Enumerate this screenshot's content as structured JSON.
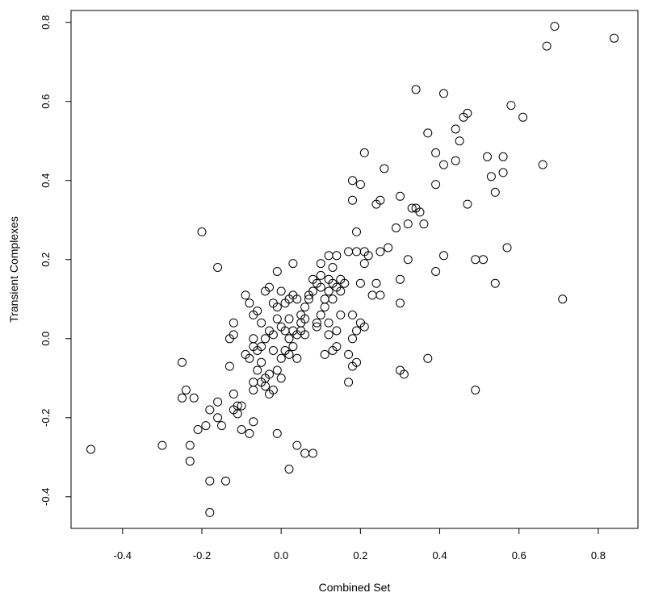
{
  "chart_data": {
    "type": "scatter",
    "title": "",
    "xlabel": "Combined Set",
    "ylabel": "Transient Complexes",
    "xlim": [
      -0.53,
      0.9
    ],
    "ylim": [
      -0.48,
      0.83
    ],
    "xticks": [
      -0.4,
      -0.2,
      0.0,
      0.2,
      0.4,
      0.6,
      0.8
    ],
    "xtick_labels": [
      "-0.4",
      "-0.2",
      "0.0",
      "0.2",
      "0.4",
      "0.6",
      "0.8"
    ],
    "yticks": [
      -0.4,
      -0.2,
      0.0,
      0.2,
      0.4,
      0.6,
      0.8
    ],
    "ytick_labels": [
      "-0.4",
      "-0.2",
      "0.0",
      "0.2",
      "0.4",
      "0.6",
      "0.8"
    ],
    "grid": false,
    "legend": "none",
    "marker": "open-circle",
    "points": [
      [
        -0.48,
        -0.28
      ],
      [
        -0.3,
        -0.27
      ],
      [
        -0.25,
        -0.06
      ],
      [
        -0.25,
        -0.15
      ],
      [
        -0.24,
        -0.13
      ],
      [
        -0.23,
        -0.27
      ],
      [
        -0.23,
        -0.31
      ],
      [
        -0.22,
        -0.15
      ],
      [
        -0.21,
        -0.23
      ],
      [
        -0.2,
        0.27
      ],
      [
        -0.19,
        -0.22
      ],
      [
        -0.18,
        -0.18
      ],
      [
        -0.18,
        -0.36
      ],
      [
        -0.18,
        -0.44
      ],
      [
        -0.16,
        -0.16
      ],
      [
        -0.16,
        -0.2
      ],
      [
        -0.16,
        0.18
      ],
      [
        -0.15,
        -0.22
      ],
      [
        -0.14,
        -0.36
      ],
      [
        -0.13,
        -0.07
      ],
      [
        -0.13,
        0.0
      ],
      [
        -0.12,
        0.01
      ],
      [
        -0.12,
        0.04
      ],
      [
        -0.12,
        -0.14
      ],
      [
        -0.12,
        -0.18
      ],
      [
        -0.11,
        -0.17
      ],
      [
        -0.11,
        -0.19
      ],
      [
        -0.1,
        -0.23
      ],
      [
        -0.1,
        -0.17
      ],
      [
        -0.09,
        0.11
      ],
      [
        -0.09,
        -0.04
      ],
      [
        -0.08,
        -0.05
      ],
      [
        -0.08,
        0.09
      ],
      [
        -0.08,
        -0.24
      ],
      [
        -0.07,
        0.06
      ],
      [
        -0.07,
        0.0
      ],
      [
        -0.07,
        -0.02
      ],
      [
        -0.07,
        -0.11
      ],
      [
        -0.07,
        -0.13
      ],
      [
        -0.07,
        -0.21
      ],
      [
        -0.06,
        0.07
      ],
      [
        -0.06,
        -0.03
      ],
      [
        -0.06,
        -0.08
      ],
      [
        -0.05,
        0.04
      ],
      [
        -0.05,
        -0.02
      ],
      [
        -0.05,
        -0.06
      ],
      [
        -0.05,
        -0.11
      ],
      [
        -0.04,
        0.12
      ],
      [
        -0.04,
        0.0
      ],
      [
        -0.04,
        -0.1
      ],
      [
        -0.04,
        -0.12
      ],
      [
        -0.03,
        0.13
      ],
      [
        -0.03,
        0.02
      ],
      [
        -0.03,
        -0.09
      ],
      [
        -0.03,
        -0.14
      ],
      [
        -0.02,
        0.09
      ],
      [
        -0.02,
        0.01
      ],
      [
        -0.02,
        -0.03
      ],
      [
        -0.02,
        -0.13
      ],
      [
        -0.01,
        0.17
      ],
      [
        -0.01,
        0.08
      ],
      [
        -0.01,
        0.05
      ],
      [
        -0.01,
        -0.08
      ],
      [
        -0.01,
        -0.24
      ],
      [
        0.0,
        0.12
      ],
      [
        0.0,
        0.03
      ],
      [
        0.0,
        -0.05
      ],
      [
        0.0,
        -0.1
      ],
      [
        0.01,
        0.09
      ],
      [
        0.01,
        0.02
      ],
      [
        0.01,
        -0.03
      ],
      [
        0.02,
        0.1
      ],
      [
        0.02,
        0.05
      ],
      [
        0.02,
        0.0
      ],
      [
        0.02,
        -0.04
      ],
      [
        0.02,
        -0.33
      ],
      [
        0.03,
        0.19
      ],
      [
        0.03,
        0.11
      ],
      [
        0.03,
        0.02
      ],
      [
        0.03,
        -0.02
      ],
      [
        0.04,
        0.1
      ],
      [
        0.04,
        0.01
      ],
      [
        0.04,
        -0.05
      ],
      [
        0.04,
        -0.27
      ],
      [
        0.05,
        0.06
      ],
      [
        0.05,
        0.04
      ],
      [
        0.05,
        0.02
      ],
      [
        0.06,
        0.08
      ],
      [
        0.06,
        0.05
      ],
      [
        0.06,
        0.01
      ],
      [
        0.06,
        -0.29
      ],
      [
        0.07,
        0.1
      ],
      [
        0.07,
        0.11
      ],
      [
        0.08,
        0.12
      ],
      [
        0.08,
        0.15
      ],
      [
        0.08,
        -0.29
      ],
      [
        0.09,
        0.14
      ],
      [
        0.09,
        0.04
      ],
      [
        0.09,
        0.03
      ],
      [
        0.1,
        0.19
      ],
      [
        0.1,
        0.16
      ],
      [
        0.1,
        0.13
      ],
      [
        0.1,
        0.06
      ],
      [
        0.11,
        0.1
      ],
      [
        0.11,
        0.08
      ],
      [
        0.11,
        -0.04
      ],
      [
        0.12,
        0.21
      ],
      [
        0.12,
        0.15
      ],
      [
        0.12,
        0.12
      ],
      [
        0.12,
        0.04
      ],
      [
        0.12,
        0.01
      ],
      [
        0.13,
        0.18
      ],
      [
        0.13,
        0.14
      ],
      [
        0.13,
        0.1
      ],
      [
        0.13,
        -0.03
      ],
      [
        0.14,
        0.21
      ],
      [
        0.14,
        0.13
      ],
      [
        0.14,
        0.02
      ],
      [
        0.14,
        -0.02
      ],
      [
        0.15,
        0.15
      ],
      [
        0.15,
        0.12
      ],
      [
        0.15,
        0.06
      ],
      [
        0.16,
        0.14
      ],
      [
        0.17,
        0.22
      ],
      [
        0.17,
        -0.04
      ],
      [
        0.17,
        -0.11
      ],
      [
        0.18,
        0.4
      ],
      [
        0.18,
        0.35
      ],
      [
        0.18,
        0.06
      ],
      [
        0.18,
        0.0
      ],
      [
        0.18,
        -0.07
      ],
      [
        0.19,
        0.27
      ],
      [
        0.19,
        0.22
      ],
      [
        0.19,
        0.02
      ],
      [
        0.19,
        -0.06
      ],
      [
        0.2,
        0.39
      ],
      [
        0.2,
        0.14
      ],
      [
        0.2,
        0.04
      ],
      [
        0.21,
        0.47
      ],
      [
        0.21,
        0.22
      ],
      [
        0.21,
        0.19
      ],
      [
        0.21,
        0.03
      ],
      [
        0.22,
        0.21
      ],
      [
        0.23,
        0.11
      ],
      [
        0.24,
        0.34
      ],
      [
        0.24,
        0.14
      ],
      [
        0.25,
        0.35
      ],
      [
        0.25,
        0.22
      ],
      [
        0.25,
        0.11
      ],
      [
        0.26,
        0.43
      ],
      [
        0.27,
        0.23
      ],
      [
        0.29,
        0.28
      ],
      [
        0.3,
        0.36
      ],
      [
        0.3,
        0.15
      ],
      [
        0.3,
        0.09
      ],
      [
        0.3,
        -0.08
      ],
      [
        0.31,
        -0.09
      ],
      [
        0.32,
        0.29
      ],
      [
        0.32,
        0.2
      ],
      [
        0.33,
        0.33
      ],
      [
        0.34,
        0.33
      ],
      [
        0.34,
        0.63
      ],
      [
        0.35,
        0.32
      ],
      [
        0.36,
        0.29
      ],
      [
        0.37,
        0.52
      ],
      [
        0.37,
        -0.05
      ],
      [
        0.39,
        0.47
      ],
      [
        0.39,
        0.39
      ],
      [
        0.39,
        0.17
      ],
      [
        0.41,
        0.62
      ],
      [
        0.41,
        0.44
      ],
      [
        0.41,
        0.21
      ],
      [
        0.44,
        0.53
      ],
      [
        0.44,
        0.45
      ],
      [
        0.45,
        0.5
      ],
      [
        0.46,
        0.56
      ],
      [
        0.47,
        0.57
      ],
      [
        0.47,
        0.34
      ],
      [
        0.49,
        0.2
      ],
      [
        0.49,
        -0.13
      ],
      [
        0.51,
        0.2
      ],
      [
        0.52,
        0.46
      ],
      [
        0.53,
        0.41
      ],
      [
        0.54,
        0.37
      ],
      [
        0.54,
        0.14
      ],
      [
        0.56,
        0.46
      ],
      [
        0.56,
        0.42
      ],
      [
        0.57,
        0.23
      ],
      [
        0.58,
        0.59
      ],
      [
        0.61,
        0.56
      ],
      [
        0.66,
        0.44
      ],
      [
        0.67,
        0.74
      ],
      [
        0.69,
        0.79
      ],
      [
        0.71,
        0.1
      ],
      [
        0.84,
        0.76
      ]
    ]
  }
}
